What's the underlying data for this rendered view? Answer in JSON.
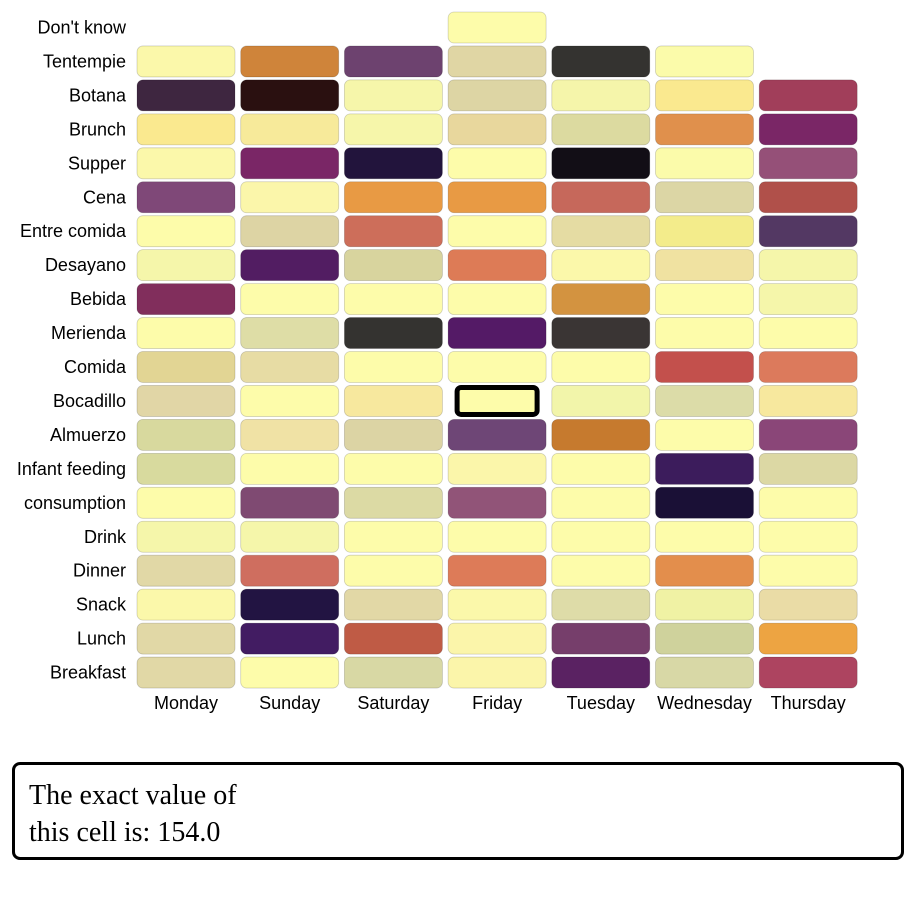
{
  "chart_data": {
    "type": "heatmap",
    "days": [
      "Monday",
      "Sunday",
      "Saturday",
      "Friday",
      "Tuesday",
      "Wednesday",
      "Thursday"
    ],
    "rows": [
      {
        "label": "Don't know",
        "cells": [
          null,
          null,
          null,
          "#fdfcaa",
          null,
          null,
          null
        ]
      },
      {
        "label": "Tentempie",
        "cells": [
          "#fbf8aa",
          "#cf843a",
          "#6d426f",
          "#e0d6a4",
          "#343330",
          "#fbfbaa",
          null
        ]
      },
      {
        "label": "Botana",
        "cells": [
          "#3e2640",
          "#2a1010",
          "#f6f6aa",
          "#ddd5a4",
          "#f5f5aa",
          "#fae98f",
          "#a13e5a"
        ]
      },
      {
        "label": "Brunch",
        "cells": [
          "#fae98f",
          "#f7ea9a",
          "#f6f6aa",
          "#e8d79d",
          "#dcdaa0",
          "#e0904c",
          "#7a2666"
        ]
      },
      {
        "label": "Supper",
        "cells": [
          "#fbf8aa",
          "#7a2666",
          "#22143c",
          "#fdfcaa",
          "#120e16",
          "#fbfbaa",
          "#955078"
        ]
      },
      {
        "label": "Cena",
        "cells": [
          "#7f4878",
          "#fbf6aa",
          "#e89a44",
          "#e89a44",
          "#c6685b",
          "#dcd6a5",
          "#b0504a"
        ]
      },
      {
        "label": "Entre comida",
        "cells": [
          "#fdfcaa",
          "#ddd4a4",
          "#cd6e5a",
          "#fdfcaa",
          "#e5dca3",
          "#f3ec8b",
          "#533863"
        ]
      },
      {
        "label": "Desayano",
        "cells": [
          "#f5f6aa",
          "#521d62",
          "#d8d49e",
          "#dd7b56",
          "#fbf8aa",
          "#f0e2a1",
          "#f5f6aa"
        ]
      },
      {
        "label": "Bebida",
        "cells": [
          "#812e5c",
          "#fdfcaa",
          "#fdfcaa",
          "#fdfcaa",
          "#d39340",
          "#fdfcaa",
          "#f5f6aa"
        ]
      },
      {
        "label": "Merienda",
        "cells": [
          "#fdfcaa",
          "#dedda6",
          "#343330",
          "#541a66",
          "#3a3534",
          "#fdfcaa",
          "#fdfcaa"
        ]
      },
      {
        "label": "Comida",
        "cells": [
          "#e2d594",
          "#e7dca4",
          "#fdfcaa",
          "#fdfcaa",
          "#fdfcaa",
          "#c3504c",
          "#dc7a5c"
        ]
      },
      {
        "label": "Bocadillo",
        "cells": [
          "#e1d6a6",
          "#fdfcaa",
          "#f7e89e",
          "#fdfcaa",
          "#f2f5aa",
          "#dcdca8",
          "#f7e89e"
        ]
      },
      {
        "label": "Almuerzo",
        "cells": [
          "#d8d99e",
          "#f0e2a5",
          "#dcd4a4",
          "#6e4676",
          "#c67a2e",
          "#fdfcaa",
          "#8a4678"
        ]
      },
      {
        "label": "Infant feeding",
        "cells": [
          "#d8da9e",
          "#fdfcaa",
          "#fdfcaa",
          "#fbf6aa",
          "#fdfcaa",
          "#3c1c5c",
          "#dcd8a4"
        ]
      },
      {
        "label": "consumption",
        "cells": [
          "#fdfcaa",
          "#7f4a72",
          "#dcdaa4",
          "#915478",
          "#fdfcaa",
          "#1a1036",
          "#fdfcaa"
        ]
      },
      {
        "label": "Drink",
        "cells": [
          "#f5f6aa",
          "#f5f6aa",
          "#fdfcaa",
          "#fdfcaa",
          "#fdfcaa",
          "#fdfcaa",
          "#fdfcaa"
        ]
      },
      {
        "label": "Dinner",
        "cells": [
          "#e1d8a6",
          "#cf6e5f",
          "#fdfcaa",
          "#dd7b58",
          "#fdfcaa",
          "#e38e4c",
          "#fdfcaa"
        ]
      },
      {
        "label": "Snack",
        "cells": [
          "#fbf8aa",
          "#221442",
          "#e2d8a6",
          "#fbf8aa",
          "#dedca8",
          "#f0f2a4",
          "#eadca6"
        ]
      },
      {
        "label": "Lunch",
        "cells": [
          "#e1d8a6",
          "#421c62",
          "#bf5b45",
          "#fbf5aa",
          "#763e6b",
          "#cfd29c",
          "#eda442"
        ]
      },
      {
        "label": "Breakfast",
        "cells": [
          "#e1d8a6",
          "#fdfcaa",
          "#d8d8a4",
          "#fbf5aa",
          "#5a2262",
          "#d8d8a6",
          "#ad4460"
        ]
      }
    ],
    "selected_cell": {
      "row": "Bocadillo",
      "day": "Friday"
    }
  },
  "tooltip": {
    "line1": "The exact value of",
    "line2": "this cell is: 154.0"
  }
}
